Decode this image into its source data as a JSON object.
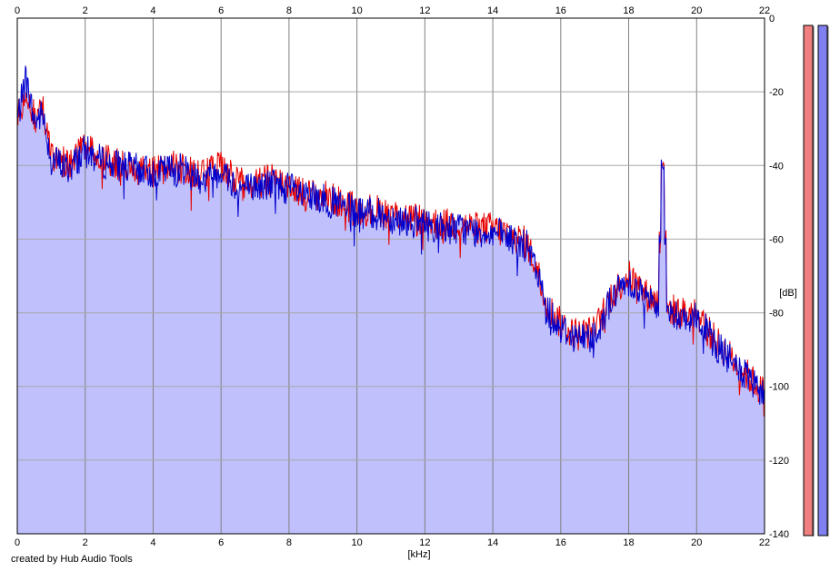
{
  "chart_data": {
    "type": "area",
    "title": "",
    "xlabel": "[kHz]",
    "ylabel": "[dB]",
    "xlim": [
      0,
      22
    ],
    "ylim": [
      -140,
      0
    ],
    "x_ticks": [
      "0",
      "2",
      "4",
      "6",
      "8",
      "10",
      "12",
      "14",
      "16",
      "18",
      "20",
      "22"
    ],
    "y_ticks": [
      "0",
      "-20",
      "-40",
      "-60",
      "-80",
      "-100",
      "-120",
      "-140"
    ],
    "grid": true,
    "x_axis_labels": "top and bottom",
    "y_axis_labels": "right",
    "series": [
      {
        "color": "#e80000",
        "x": [
          0,
          0.25,
          0.5,
          0.75,
          1,
          1.5,
          2,
          2.5,
          3,
          3.5,
          4,
          4.5,
          5,
          5.5,
          6,
          6.5,
          7,
          7.5,
          8,
          8.5,
          9,
          9.5,
          10,
          10.5,
          11,
          11.5,
          12,
          12.5,
          13,
          13.5,
          14,
          14.5,
          15,
          15.3,
          15.6,
          16,
          16.5,
          17,
          17.5,
          18,
          18.5,
          19,
          19.5,
          20,
          20.5,
          21,
          21.5,
          22
        ],
        "y": [
          -27,
          -18,
          -27,
          -25,
          -37,
          -40,
          -35,
          -38,
          -40,
          -40,
          -42,
          -40,
          -41,
          -43,
          -40,
          -45,
          -45,
          -44,
          -45,
          -48,
          -48,
          -50,
          -52,
          -52,
          -53,
          -54,
          -55,
          -56,
          -56,
          -57,
          -57,
          -59,
          -61,
          -68,
          -78,
          -83,
          -86,
          -85,
          -75,
          -70,
          -75,
          -78,
          -80,
          -80,
          -87,
          -92,
          -97,
          -102
        ]
      },
      {
        "color": "#0000cc",
        "x": [
          0,
          0.25,
          0.5,
          0.75,
          1,
          1.5,
          2,
          2.5,
          3,
          3.5,
          4,
          4.5,
          5,
          5.5,
          6,
          6.5,
          7,
          7.5,
          8,
          8.5,
          9,
          9.5,
          10,
          10.5,
          11,
          11.5,
          12,
          12.5,
          13,
          13.5,
          14,
          14.5,
          15,
          15.3,
          15.6,
          16,
          16.5,
          17,
          17.5,
          18,
          18.5,
          19,
          19.5,
          20,
          20.5,
          21,
          21.5,
          22
        ],
        "y": [
          -28,
          -16,
          -28,
          -26,
          -38,
          -41,
          -36,
          -39,
          -40,
          -41,
          -42,
          -41,
          -41,
          -44,
          -41,
          -46,
          -46,
          -45,
          -46,
          -49,
          -49,
          -51,
          -53,
          -53,
          -54,
          -55,
          -56,
          -57,
          -57,
          -58,
          -58,
          -60,
          -62,
          -69,
          -79,
          -84,
          -87,
          -86,
          -76,
          -71,
          -76,
          -79,
          -81,
          -81,
          -88,
          -93,
          -98,
          -103
        ]
      }
    ],
    "peak": {
      "x": 19,
      "y": -41
    },
    "level_meters": [
      {
        "color": "#f08080",
        "value": -140
      },
      {
        "color": "#8080f0",
        "value": -140
      }
    ]
  },
  "footer": {
    "credit": "created by Hub Audio Tools"
  }
}
